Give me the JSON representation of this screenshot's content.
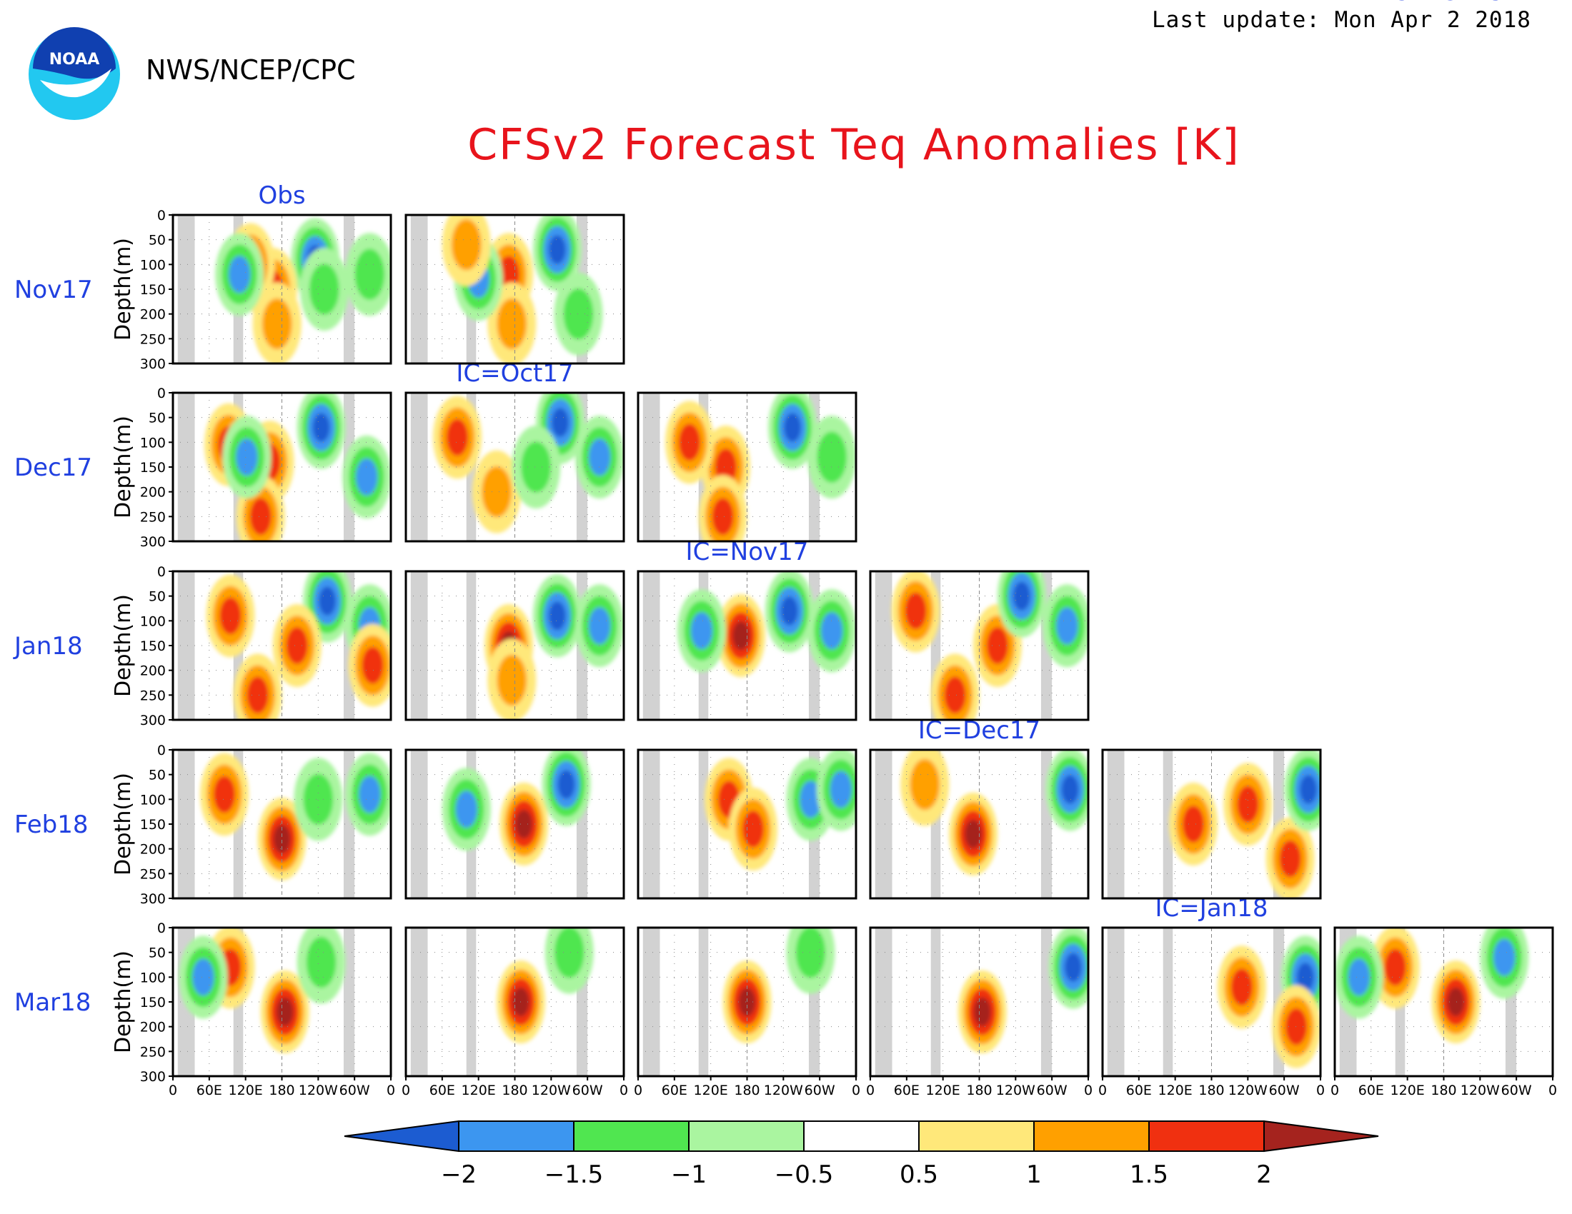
{
  "header": {
    "agency": "NWS/NCEP/CPC",
    "last_update": "Last update: Mon Apr 2 2018",
    "logo_text": "NOAA",
    "title": "CFSv2 Forecast Teq Anomalies [K]"
  },
  "chart_data": {
    "type": "heatmap",
    "title": "CFSv2 Forecast Teq Anomalies [K]",
    "ylabel": "Depth(m)",
    "ylim": [
      300,
      0
    ],
    "y_ticks": [
      "0",
      "50",
      "100",
      "150",
      "200",
      "250",
      "300"
    ],
    "x_ticks": [
      "0",
      "60E",
      "120E",
      "180",
      "120W",
      "60W",
      "0"
    ],
    "row_labels": [
      "Nov17",
      "Dec17",
      "Jan18",
      "Feb18",
      "Mar18"
    ],
    "column_labels": [
      "Obs",
      "IC=Oct17",
      "IC=Nov17",
      "IC=Dec17",
      "IC=Jan18",
      "IC=Feb18"
    ],
    "colorbar": {
      "ticks": [
        "−2",
        "−1.5",
        "−1",
        "−0.5",
        "0.5",
        "1",
        "1.5",
        "2"
      ],
      "colors": [
        "#1c5cd1",
        "#3c96f0",
        "#50e650",
        "#aaf5a0",
        "#ffffff",
        "#ffe87a",
        "#ffa000",
        "#f03010",
        "#a5231e"
      ]
    },
    "panels": [
      {
        "row": 0,
        "col": 0,
        "features": [
          {
            "lon": 235,
            "depth": 90,
            "value": -2.0
          },
          {
            "lon": 250,
            "depth": 150,
            "value": -1.0
          },
          {
            "lon": 165,
            "depth": 150,
            "value": 1.5
          },
          {
            "lon": 172,
            "depth": 220,
            "value": 1.0
          },
          {
            "lon": 128,
            "depth": 100,
            "value": 1.5
          },
          {
            "lon": 110,
            "depth": 120,
            "value": -1.5
          },
          {
            "lon": 325,
            "depth": 120,
            "value": -1.0
          }
        ]
      },
      {
        "row": 0,
        "col": 1,
        "features": [
          {
            "lon": 250,
            "depth": 70,
            "value": -2.0
          },
          {
            "lon": 170,
            "depth": 120,
            "value": 1.5
          },
          {
            "lon": 175,
            "depth": 220,
            "value": 1.0
          },
          {
            "lon": 120,
            "depth": 130,
            "value": -1.5
          },
          {
            "lon": 100,
            "depth": 60,
            "value": 1.0
          },
          {
            "lon": 285,
            "depth": 200,
            "value": -1.0
          }
        ]
      },
      {
        "row": 1,
        "col": 0,
        "features": [
          {
            "lon": 245,
            "depth": 70,
            "value": -2.0
          },
          {
            "lon": 160,
            "depth": 140,
            "value": 1.5
          },
          {
            "lon": 145,
            "depth": 250,
            "value": 1.5
          },
          {
            "lon": 92,
            "depth": 105,
            "value": 1.5
          },
          {
            "lon": 122,
            "depth": 130,
            "value": -1.5
          },
          {
            "lon": 320,
            "depth": 170,
            "value": -1.5
          }
        ]
      },
      {
        "row": 1,
        "col": 1,
        "features": [
          {
            "lon": 255,
            "depth": 60,
            "value": -2.0
          },
          {
            "lon": 85,
            "depth": 90,
            "value": 1.5
          },
          {
            "lon": 150,
            "depth": 200,
            "value": 1.0
          },
          {
            "lon": 320,
            "depth": 130,
            "value": -1.5
          },
          {
            "lon": 215,
            "depth": 150,
            "value": -1.0
          }
        ]
      },
      {
        "row": 1,
        "col": 2,
        "features": [
          {
            "lon": 255,
            "depth": 70,
            "value": -2.0
          },
          {
            "lon": 145,
            "depth": 150,
            "value": 1.5
          },
          {
            "lon": 140,
            "depth": 250,
            "value": 1.5
          },
          {
            "lon": 85,
            "depth": 100,
            "value": 1.5
          },
          {
            "lon": 320,
            "depth": 130,
            "value": -1.0
          }
        ]
      },
      {
        "row": 2,
        "col": 0,
        "features": [
          {
            "lon": 255,
            "depth": 60,
            "value": -2.0
          },
          {
            "lon": 205,
            "depth": 150,
            "value": 1.5
          },
          {
            "lon": 140,
            "depth": 250,
            "value": 1.5
          },
          {
            "lon": 95,
            "depth": 90,
            "value": 1.5
          },
          {
            "lon": 325,
            "depth": 110,
            "value": -1.5
          },
          {
            "lon": 330,
            "depth": 190,
            "value": 1.5
          }
        ]
      },
      {
        "row": 2,
        "col": 1,
        "features": [
          {
            "lon": 170,
            "depth": 150,
            "value": 2.0
          },
          {
            "lon": 175,
            "depth": 220,
            "value": 1.0
          },
          {
            "lon": 250,
            "depth": 90,
            "value": -2.0
          },
          {
            "lon": 320,
            "depth": 110,
            "value": -1.5
          }
        ]
      },
      {
        "row": 2,
        "col": 2,
        "features": [
          {
            "lon": 170,
            "depth": 130,
            "value": 2.0
          },
          {
            "lon": 250,
            "depth": 80,
            "value": -2.0
          },
          {
            "lon": 105,
            "depth": 120,
            "value": -1.5
          },
          {
            "lon": 320,
            "depth": 120,
            "value": -1.5
          }
        ]
      },
      {
        "row": 2,
        "col": 3,
        "features": [
          {
            "lon": 210,
            "depth": 150,
            "value": 1.5
          },
          {
            "lon": 140,
            "depth": 250,
            "value": 1.5
          },
          {
            "lon": 75,
            "depth": 80,
            "value": 1.5
          },
          {
            "lon": 250,
            "depth": 50,
            "value": -2.0
          },
          {
            "lon": 325,
            "depth": 110,
            "value": -1.5
          }
        ]
      },
      {
        "row": 3,
        "col": 0,
        "features": [
          {
            "lon": 180,
            "depth": 180,
            "value": 2.0
          },
          {
            "lon": 85,
            "depth": 90,
            "value": 1.5
          },
          {
            "lon": 240,
            "depth": 100,
            "value": -1.0
          },
          {
            "lon": 325,
            "depth": 90,
            "value": -1.5
          }
        ]
      },
      {
        "row": 3,
        "col": 1,
        "features": [
          {
            "lon": 195,
            "depth": 150,
            "value": 2.0
          },
          {
            "lon": 265,
            "depth": 70,
            "value": -2.0
          },
          {
            "lon": 100,
            "depth": 120,
            "value": -1.5
          }
        ]
      },
      {
        "row": 3,
        "col": 2,
        "features": [
          {
            "lon": 150,
            "depth": 100,
            "value": 1.5
          },
          {
            "lon": 190,
            "depth": 160,
            "value": 1.5
          },
          {
            "lon": 285,
            "depth": 100,
            "value": -1.5
          },
          {
            "lon": 335,
            "depth": 80,
            "value": -1.5
          }
        ]
      },
      {
        "row": 3,
        "col": 3,
        "features": [
          {
            "lon": 170,
            "depth": 170,
            "value": 2.0
          },
          {
            "lon": 90,
            "depth": 70,
            "value": 1.0
          },
          {
            "lon": 330,
            "depth": 80,
            "value": -2.0
          }
        ]
      },
      {
        "row": 3,
        "col": 4,
        "features": [
          {
            "lon": 150,
            "depth": 150,
            "value": 1.5
          },
          {
            "lon": 240,
            "depth": 110,
            "value": 1.5
          },
          {
            "lon": 310,
            "depth": 220,
            "value": 1.5
          },
          {
            "lon": 340,
            "depth": 80,
            "value": -2.0
          }
        ]
      },
      {
        "row": 4,
        "col": 0,
        "features": [
          {
            "lon": 185,
            "depth": 170,
            "value": 2.0
          },
          {
            "lon": 95,
            "depth": 80,
            "value": 1.5
          },
          {
            "lon": 50,
            "depth": 100,
            "value": -1.5
          },
          {
            "lon": 245,
            "depth": 70,
            "value": -1.0
          }
        ]
      },
      {
        "row": 4,
        "col": 1,
        "features": [
          {
            "lon": 190,
            "depth": 150,
            "value": 2.0
          },
          {
            "lon": 270,
            "depth": 50,
            "value": -1.0
          }
        ]
      },
      {
        "row": 4,
        "col": 2,
        "features": [
          {
            "lon": 180,
            "depth": 150,
            "value": 2.0
          },
          {
            "lon": 285,
            "depth": 50,
            "value": -1.0
          }
        ]
      },
      {
        "row": 4,
        "col": 3,
        "features": [
          {
            "lon": 185,
            "depth": 170,
            "value": 2.0
          },
          {
            "lon": 335,
            "depth": 80,
            "value": -2.0
          }
        ]
      },
      {
        "row": 4,
        "col": 4,
        "features": [
          {
            "lon": 230,
            "depth": 120,
            "value": 1.5
          },
          {
            "lon": 335,
            "depth": 100,
            "value": -2.0
          },
          {
            "lon": 320,
            "depth": 200,
            "value": 1.5
          }
        ]
      },
      {
        "row": 4,
        "col": 5,
        "features": [
          {
            "lon": 200,
            "depth": 150,
            "value": 2.0
          },
          {
            "lon": 280,
            "depth": 60,
            "value": -1.5
          },
          {
            "lon": 100,
            "depth": 80,
            "value": 1.5
          },
          {
            "lon": 40,
            "depth": 100,
            "value": -1.5
          }
        ]
      }
    ]
  }
}
